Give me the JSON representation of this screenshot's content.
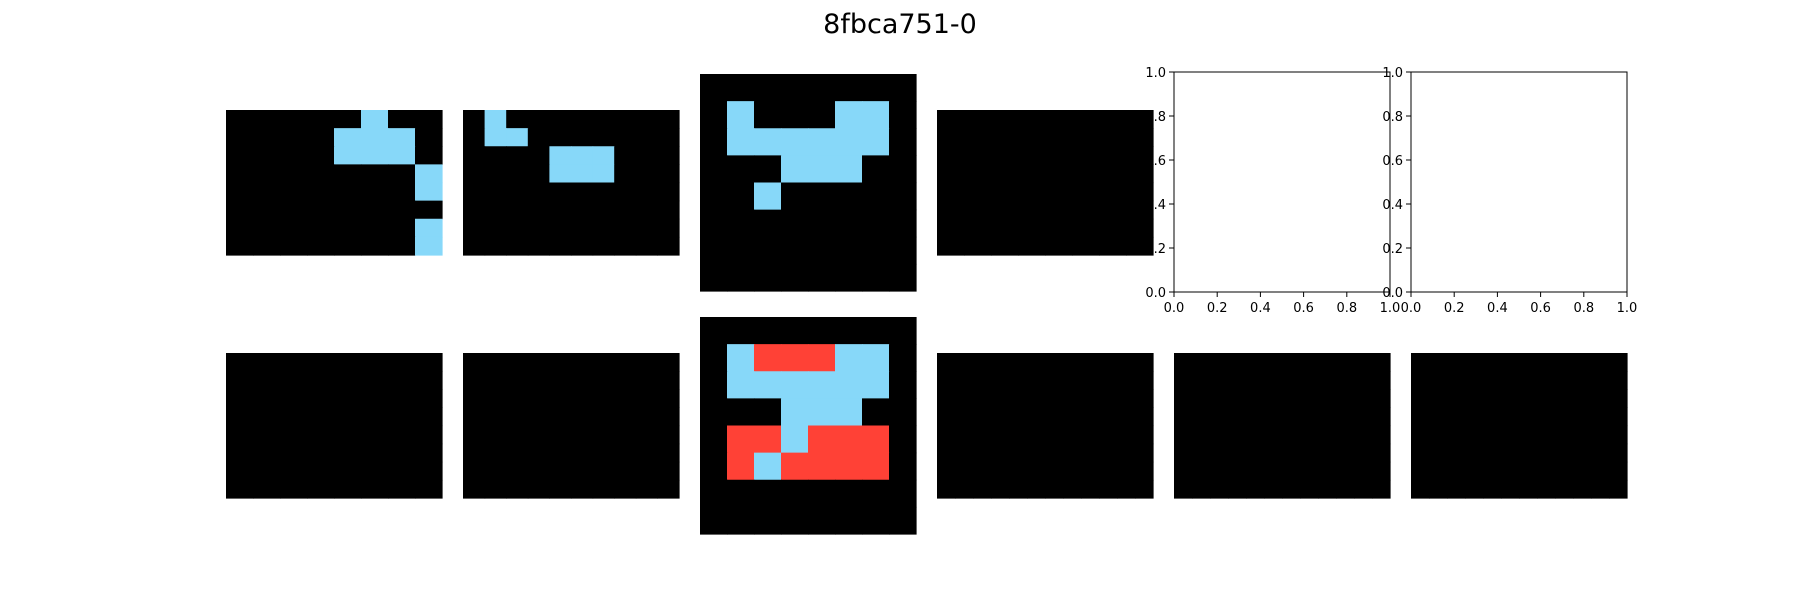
{
  "title": "8fbca751-0",
  "colors": {
    "0": "#000000",
    "1": "#87d8f9",
    "2": "#ff4136"
  },
  "grids": [
    {
      "name": "train-input-1",
      "rows": [
        "00000100",
        "00001110",
        "00001110",
        "00000001",
        "00000001",
        "00000000",
        "00000001",
        "00000001"
      ]
    },
    {
      "name": "train-input-2",
      "rows": [
        "0100000000",
        "0110000000",
        "0000111000",
        "0000111000",
        "0000000000",
        "0000000000",
        "0000000000",
        "0000000000"
      ]
    },
    {
      "name": "train-input-3",
      "rows": [
        "00000000",
        "01000110",
        "01111110",
        "00011100",
        "00100000",
        "00000000",
        "00000000",
        "00000000"
      ]
    },
    {
      "name": "train-input-4",
      "rows": [
        "00000000",
        "00000000",
        "00000000",
        "00000000",
        "00000000",
        "00000000",
        "00000000",
        "00000000"
      ]
    },
    {
      "name": "train-output-1",
      "rows": [
        "00000000",
        "00000000",
        "00000000",
        "00000000",
        "00000000",
        "00000000",
        "00000000",
        "00000000"
      ]
    },
    {
      "name": "train-output-2",
      "rows": [
        "0000000000",
        "0000000000",
        "0000000000",
        "0000000000",
        "0000000000",
        "0000000000",
        "0000000000",
        "0000000000"
      ]
    },
    {
      "name": "train-output-3",
      "rows": [
        "00000000",
        "01222110",
        "01111110",
        "00011100",
        "02212220",
        "02122220",
        "00000000",
        "00000000"
      ]
    },
    {
      "name": "test-input",
      "rows": [
        "000000000000",
        "000000000000",
        "000000000000",
        "000000000000",
        "000000000000",
        "000000000000",
        "000000000000",
        "000000000000"
      ]
    },
    {
      "name": "test-output",
      "rows": [
        "000000000000",
        "000000000000",
        "000000000000",
        "000000000000",
        "000000000000",
        "000000000000",
        "000000000000",
        "000000000000"
      ]
    },
    {
      "name": "prediction",
      "rows": [
        "000000000000",
        "000000000000",
        "000000000000",
        "000000000000",
        "000000000000",
        "000000000000",
        "000000000000",
        "000000000000"
      ]
    }
  ],
  "empty_axes": [
    {
      "name": "empty-axis-1",
      "xticks": [
        "0.0",
        "0.2",
        "0.4",
        "0.6",
        "0.8",
        "1.0"
      ],
      "yticks": [
        "0.0",
        "0.2",
        "0.4",
        "0.6",
        "0.8",
        "1.0"
      ]
    },
    {
      "name": "empty-axis-2",
      "xticks": [
        "0.0",
        "0.2",
        "0.4",
        "0.6",
        "0.8",
        "1.0"
      ],
      "yticks": [
        "0.0",
        "0.2",
        "0.4",
        "0.6",
        "0.8",
        "1.0"
      ]
    }
  ]
}
